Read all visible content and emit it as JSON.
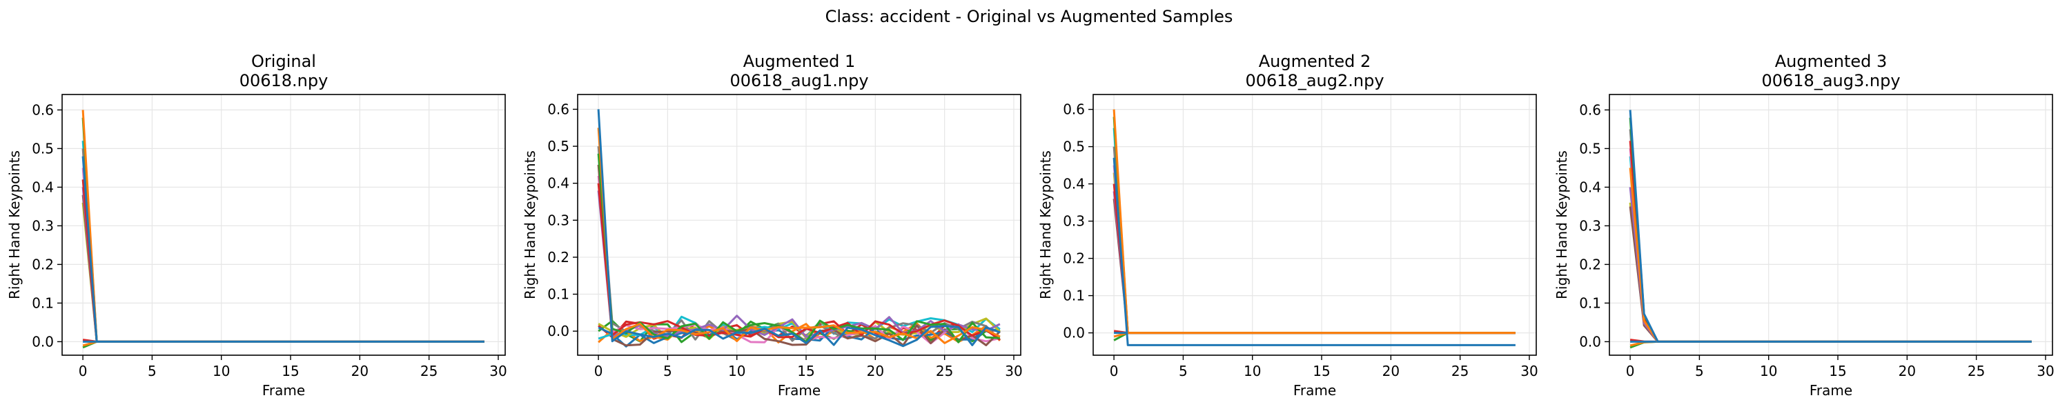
{
  "figure": {
    "suptitle": "Class: accident - Original vs Augmented Samples"
  },
  "chart_data": [
    {
      "type": "line",
      "title": "Original",
      "subtitle": "00618.npy",
      "xlabel": "Frame",
      "ylabel": "Right Hand Keypoints",
      "xlim": [
        -1.5,
        30.5
      ],
      "ylim": [
        -0.035,
        0.64
      ],
      "xticks": [
        "0",
        "5",
        "10",
        "15",
        "20",
        "25",
        "30"
      ],
      "yticks": [
        "0.0",
        "0.1",
        "0.2",
        "0.3",
        "0.4",
        "0.5",
        "0.6"
      ],
      "grid": true,
      "series_colors": [
        "#1f77b4",
        "#ff7f0e",
        "#2ca02c",
        "#d62728",
        "#9467bd",
        "#8c564b",
        "#e377c2",
        "#7f7f7f",
        "#bcbd22",
        "#17becf"
      ],
      "series_start_values": [
        0.48,
        0.6,
        0.58,
        0.42,
        0.4,
        0.38,
        0.45,
        0.5,
        0.36,
        0.52,
        0.0,
        -0.01,
        -0.015,
        0.005
      ],
      "series_profile": "spike",
      "last_frame": 29
    },
    {
      "type": "line",
      "title": "Augmented 1",
      "subtitle": "00618_aug1.npy",
      "xlabel": "Frame",
      "ylabel": "Right Hand Keypoints",
      "xlim": [
        -1.5,
        30.5
      ],
      "ylim": [
        -0.065,
        0.64
      ],
      "xticks": [
        "0",
        "5",
        "10",
        "15",
        "20",
        "25",
        "30"
      ],
      "yticks": [
        "0.0",
        "0.1",
        "0.2",
        "0.3",
        "0.4",
        "0.5",
        "0.6"
      ],
      "grid": true,
      "series_colors": [
        "#1f77b4",
        "#ff7f0e",
        "#2ca02c",
        "#d62728",
        "#9467bd",
        "#8c564b",
        "#e377c2",
        "#7f7f7f",
        "#bcbd22",
        "#17becf"
      ],
      "series_start_values": [
        0.6,
        0.55,
        0.48,
        0.4,
        0.38,
        0.45,
        0.42,
        0.5,
        0.02,
        -0.02,
        0.01,
        -0.03,
        0.0,
        0.015
      ],
      "series_profile": "noisy",
      "noise_amplitude": 0.03,
      "last_frame": 29
    },
    {
      "type": "line",
      "title": "Augmented 2",
      "subtitle": "00618_aug2.npy",
      "xlabel": "Frame",
      "ylabel": "Right Hand Keypoints",
      "xlim": [
        -1.5,
        30.5
      ],
      "ylim": [
        -0.06,
        0.64
      ],
      "xticks": [
        "0",
        "5",
        "10",
        "15",
        "20",
        "25",
        "30"
      ],
      "yticks": [
        "0.0",
        "0.1",
        "0.2",
        "0.3",
        "0.4",
        "0.5",
        "0.6"
      ],
      "grid": true,
      "series_colors": [
        "#1f77b4",
        "#ff7f0e",
        "#2ca02c",
        "#d62728",
        "#9467bd",
        "#8c564b",
        "#e377c2",
        "#7f7f7f",
        "#bcbd22",
        "#17becf"
      ],
      "series_start_values": [
        0.47,
        0.6,
        0.58,
        0.4,
        0.38,
        0.36,
        0.45,
        0.5,
        0.43,
        0.55,
        0.0,
        -0.01,
        -0.02,
        0.005
      ],
      "series_profile": "offset",
      "offset_series": {
        "index": 0,
        "value": -0.033
      },
      "last_frame": 29
    },
    {
      "type": "line",
      "title": "Augmented 3",
      "subtitle": "00618_aug3.npy",
      "xlabel": "Frame",
      "ylabel": "Right Hand Keypoints",
      "xlim": [
        -1.5,
        30.5
      ],
      "ylim": [
        -0.035,
        0.64
      ],
      "xticks": [
        "0",
        "5",
        "10",
        "15",
        "20",
        "25",
        "30"
      ],
      "yticks": [
        "0.0",
        "0.1",
        "0.2",
        "0.3",
        "0.4",
        "0.5",
        "0.6"
      ],
      "grid": true,
      "series_colors": [
        "#1f77b4",
        "#ff7f0e",
        "#2ca02c",
        "#d62728",
        "#9467bd",
        "#8c564b",
        "#e377c2",
        "#7f7f7f",
        "#bcbd22",
        "#17becf"
      ],
      "series_start_values": [
        0.6,
        0.45,
        0.58,
        0.52,
        0.4,
        0.35,
        0.5,
        0.55,
        0.36,
        0.48,
        0.0,
        -0.01,
        -0.015,
        0.005
      ],
      "series_profile": "slow",
      "step1_fraction": 0.12,
      "last_frame": 29
    }
  ]
}
